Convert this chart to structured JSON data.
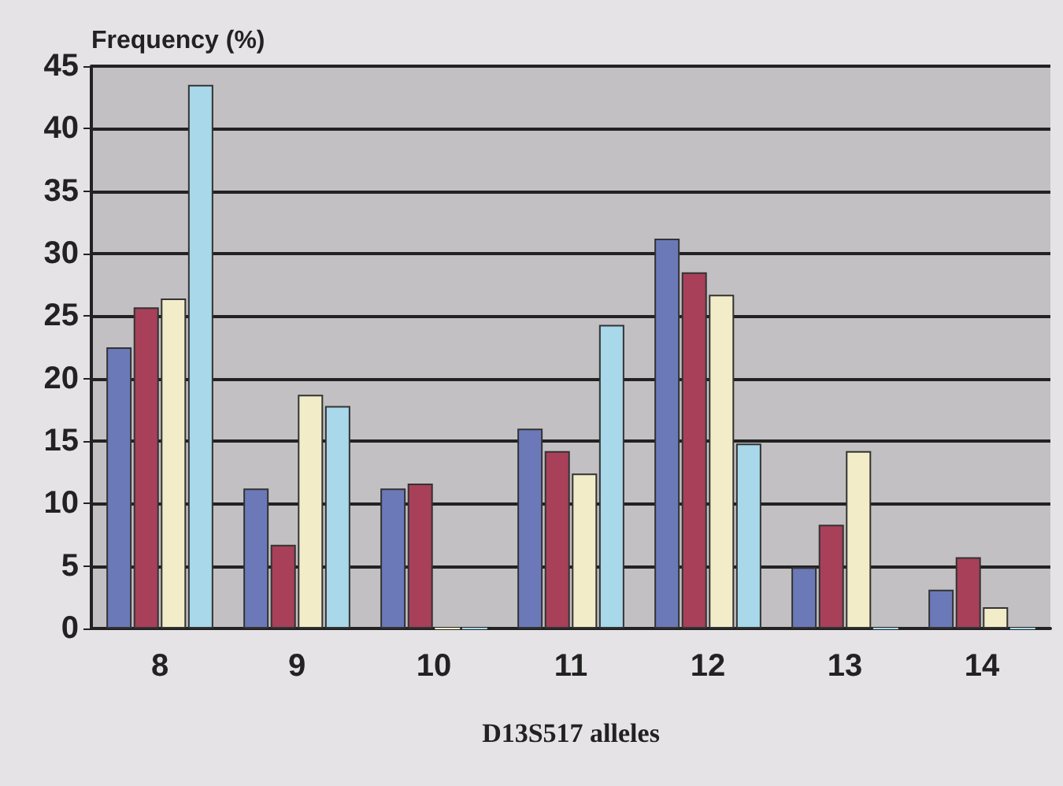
{
  "chart_data": {
    "type": "bar",
    "ylabel": "Frequency (%)",
    "xlabel": "D13S517 alleles",
    "categories": [
      "8",
      "9",
      "10",
      "11",
      "12",
      "13",
      "14"
    ],
    "series": [
      {
        "color": "#6b79b8",
        "values": [
          22.5,
          11.2,
          11.2,
          16,
          31.2,
          4.9,
          3.1
        ]
      },
      {
        "color": "#a8405a",
        "values": [
          25.7,
          6.7,
          11.6,
          14.2,
          28.5,
          8.3,
          5.7
        ]
      },
      {
        "color": "#f2ecc8",
        "values": [
          26.4,
          18.7,
          0,
          12.4,
          26.7,
          14.2,
          1.7
        ]
      },
      {
        "color": "#a8d8ea",
        "values": [
          43.5,
          17.8,
          0,
          24.3,
          14.8,
          0,
          0
        ]
      }
    ],
    "ylim": [
      0,
      45
    ],
    "yticks": [
      0,
      5,
      10,
      15,
      20,
      25,
      30,
      35,
      40,
      45
    ],
    "grid": "y"
  }
}
